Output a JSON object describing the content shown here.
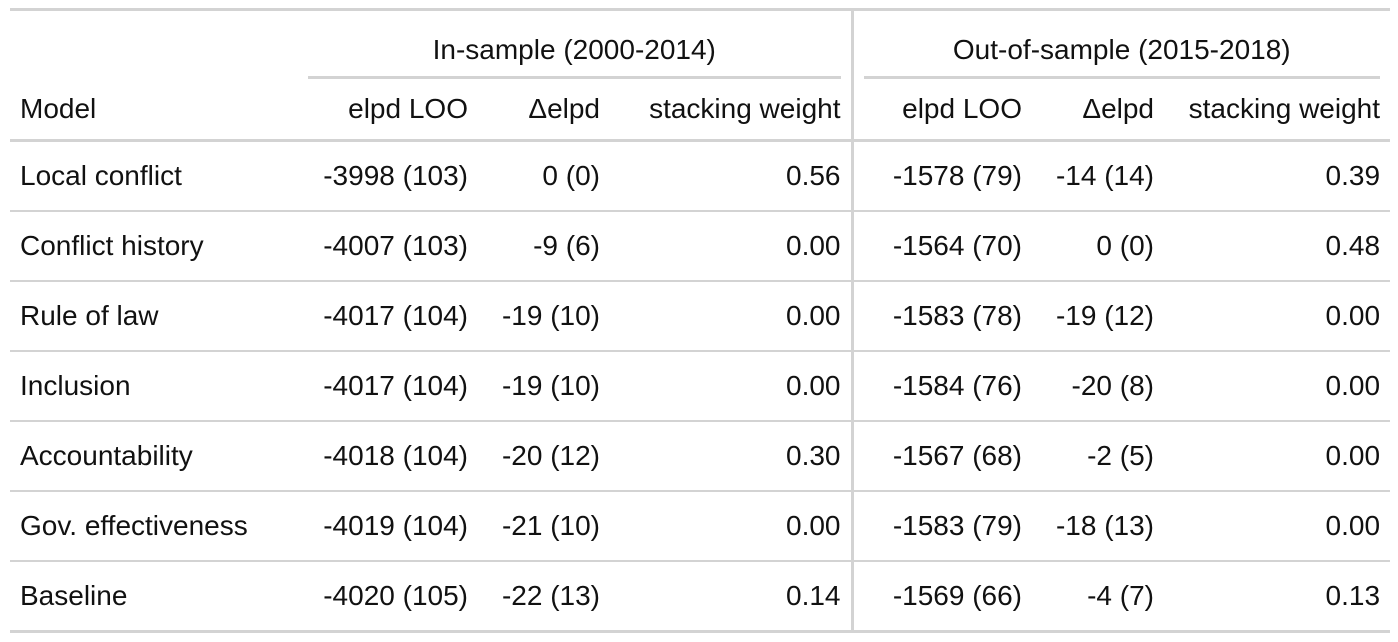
{
  "table": {
    "spanners": {
      "in_sample": "In-sample (2000-2014)",
      "out_of_sample": "Out-of-sample (2015-2018)"
    },
    "columns": {
      "model": "Model",
      "in_elpd": "elpd LOO",
      "in_delta": "Δelpd",
      "in_weight": "stacking weight",
      "out_elpd": "elpd LOO",
      "out_delta": "Δelpd",
      "out_weight": "stacking weight"
    },
    "rows": [
      {
        "model": "Local conflict",
        "in_elpd": "-3998 (103)",
        "in_delta": "0 (0)",
        "in_weight": "0.56",
        "out_elpd": "-1578 (79)",
        "out_delta": "-14 (14)",
        "out_weight": "0.39"
      },
      {
        "model": "Conflict history",
        "in_elpd": "-4007 (103)",
        "in_delta": "-9 (6)",
        "in_weight": "0.00",
        "out_elpd": "-1564 (70)",
        "out_delta": "0 (0)",
        "out_weight": "0.48"
      },
      {
        "model": "Rule of law",
        "in_elpd": "-4017 (104)",
        "in_delta": "-19 (10)",
        "in_weight": "0.00",
        "out_elpd": "-1583 (78)",
        "out_delta": "-19 (12)",
        "out_weight": "0.00"
      },
      {
        "model": "Inclusion",
        "in_elpd": "-4017 (104)",
        "in_delta": "-19 (10)",
        "in_weight": "0.00",
        "out_elpd": "-1584 (76)",
        "out_delta": "-20 (8)",
        "out_weight": "0.00"
      },
      {
        "model": "Accountability",
        "in_elpd": "-4018 (104)",
        "in_delta": "-20 (12)",
        "in_weight": "0.30",
        "out_elpd": "-1567 (68)",
        "out_delta": "-2 (5)",
        "out_weight": "0.00"
      },
      {
        "model": "Gov. effectiveness",
        "in_elpd": "-4019 (104)",
        "in_delta": "-21 (10)",
        "in_weight": "0.00",
        "out_elpd": "-1583 (79)",
        "out_delta": "-18 (13)",
        "out_weight": "0.00"
      },
      {
        "model": "Baseline",
        "in_elpd": "-4020 (105)",
        "in_delta": "-22 (13)",
        "in_weight": "0.14",
        "out_elpd": "-1569 (66)",
        "out_delta": "-4 (7)",
        "out_weight": "0.13"
      }
    ]
  }
}
